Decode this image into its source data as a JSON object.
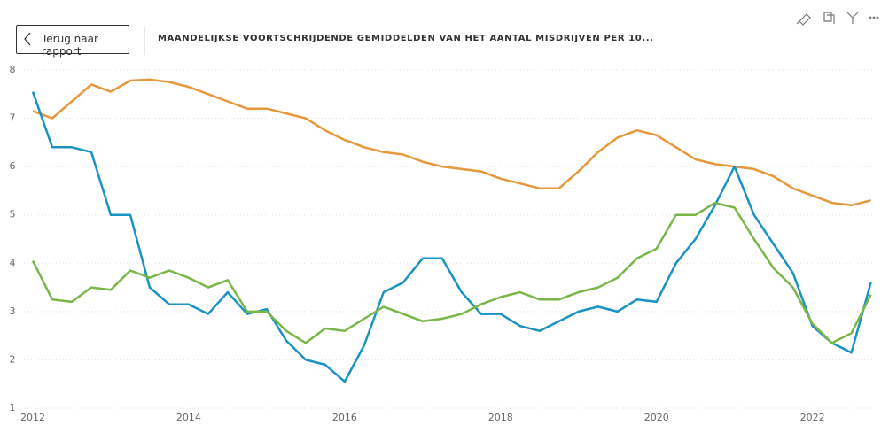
{
  "header": {
    "back_button": "Terug naar rapport",
    "title": "MAANDELIJKSE VOORTSCHRIJDENDE GEMIDDELDEN VAN HET AANTAL MISDRIJVEN PER 10..."
  },
  "chart_data": {
    "type": "line",
    "x": [
      2012,
      2012.25,
      2012.5,
      2012.75,
      2013,
      2013.25,
      2013.5,
      2013.75,
      2014,
      2014.25,
      2014.5,
      2014.75,
      2015,
      2015.25,
      2015.5,
      2015.75,
      2016,
      2016.25,
      2016.5,
      2016.75,
      2017,
      2017.25,
      2017.5,
      2017.75,
      2018,
      2018.25,
      2018.5,
      2018.75,
      2019,
      2019.25,
      2019.5,
      2019.75,
      2020,
      2020.25,
      2020.5,
      2020.75,
      2021,
      2021.25,
      2021.5,
      2021.75,
      2022,
      2022.25,
      2022.5,
      2022.75
    ],
    "series": [
      {
        "color": "#e8973a",
        "values": [
          7.15,
          7.0,
          7.35,
          7.7,
          7.55,
          7.78,
          7.8,
          7.75,
          7.65,
          7.5,
          7.35,
          7.2,
          7.2,
          7.1,
          7.0,
          6.75,
          6.55,
          6.4,
          6.3,
          6.25,
          6.1,
          6.0,
          5.95,
          5.9,
          5.75,
          5.65,
          5.55,
          5.55,
          5.9,
          6.3,
          6.6,
          6.75,
          6.65,
          6.4,
          6.15,
          6.05,
          6.0,
          5.95,
          5.8,
          5.55,
          5.4,
          5.25,
          5.2,
          5.3
        ]
      },
      {
        "color": "#1a93c4",
        "values": [
          7.55,
          6.4,
          6.4,
          6.3,
          5.0,
          5.0,
          3.5,
          3.15,
          3.15,
          2.95,
          3.4,
          2.95,
          3.05,
          2.4,
          2.0,
          1.9,
          1.55,
          2.3,
          3.4,
          3.6,
          4.1,
          4.1,
          3.4,
          2.95,
          2.95,
          2.7,
          2.6,
          2.8,
          3.0,
          3.1,
          3.0,
          3.25,
          3.2,
          4.0,
          4.5,
          5.2,
          6.0,
          5.0,
          4.4,
          3.8,
          2.7,
          2.35,
          2.15,
          3.6
        ]
      },
      {
        "color": "#7ab648",
        "values": [
          4.05,
          3.25,
          3.2,
          3.5,
          3.45,
          3.85,
          3.7,
          3.85,
          3.7,
          3.5,
          3.65,
          3.0,
          3.0,
          2.6,
          2.35,
          2.65,
          2.6,
          2.85,
          3.1,
          2.95,
          2.8,
          2.85,
          2.95,
          3.15,
          3.3,
          3.4,
          3.25,
          3.25,
          3.4,
          3.5,
          3.7,
          4.1,
          4.3,
          5.0,
          5.0,
          5.25,
          5.15,
          4.5,
          3.9,
          3.5,
          2.75,
          2.35,
          2.55,
          3.35
        ]
      }
    ],
    "xlim": [
      2012,
      2022.8
    ],
    "xticks": [
      2012,
      2014,
      2016,
      2018,
      2020,
      2022
    ],
    "ylim": [
      1,
      8
    ],
    "yticks": [
      1,
      2,
      3,
      4,
      5,
      6,
      7,
      8
    ],
    "grid": true
  }
}
